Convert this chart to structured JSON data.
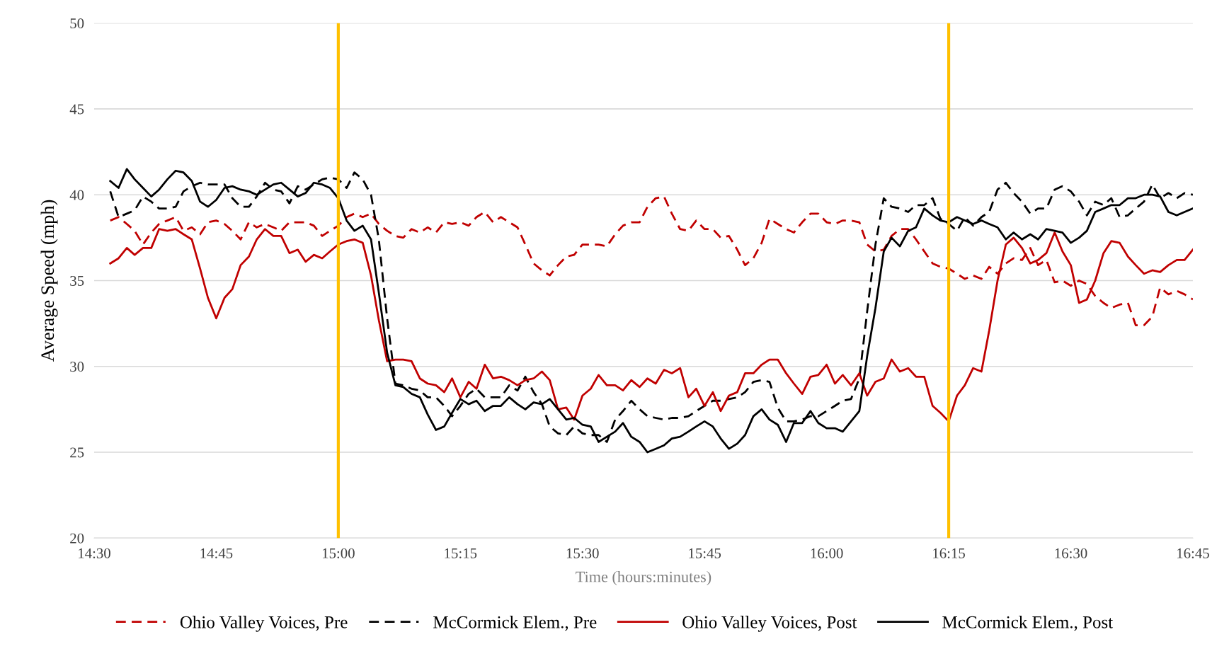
{
  "chart_data": {
    "type": "line",
    "xlabel": "Time (hours:minutes)",
    "ylabel": "Average Speed (mph)",
    "x": [
      14.533,
      14.55,
      14.567,
      14.583,
      14.6,
      14.617,
      14.633,
      14.65,
      14.667,
      14.683,
      14.7,
      14.717,
      14.733,
      14.75,
      14.767,
      14.783,
      14.8,
      14.817,
      14.833,
      14.85,
      14.867,
      14.883,
      14.9,
      14.917,
      14.933,
      14.95,
      14.967,
      14.983,
      15,
      15.017,
      15.033,
      15.05,
      15.067,
      15.083,
      15.1,
      15.117,
      15.133,
      15.15,
      15.167,
      15.183,
      15.2,
      15.217,
      15.233,
      15.25,
      15.267,
      15.283,
      15.3,
      15.317,
      15.333,
      15.35,
      15.367,
      15.383,
      15.4,
      15.417,
      15.433,
      15.45,
      15.467,
      15.483,
      15.5,
      15.517,
      15.533,
      15.55,
      15.567,
      15.583,
      15.6,
      15.617,
      15.633,
      15.65,
      15.667,
      15.683,
      15.7,
      15.717,
      15.733,
      15.75,
      15.767,
      15.783,
      15.8,
      15.817,
      15.833,
      15.85,
      15.867,
      15.883,
      15.9,
      15.917,
      15.933,
      15.95,
      15.967,
      15.983,
      16,
      16.017,
      16.033,
      16.05,
      16.067,
      16.083,
      16.1,
      16.117,
      16.133,
      16.15,
      16.167,
      16.183,
      16.2,
      16.217,
      16.233,
      16.25,
      16.267,
      16.283,
      16.3,
      16.317,
      16.333,
      16.35,
      16.367,
      16.383,
      16.4,
      16.417,
      16.433,
      16.45,
      16.467,
      16.483,
      16.5,
      16.517,
      16.533,
      16.55,
      16.567,
      16.583,
      16.6,
      16.617,
      16.633,
      16.65,
      16.667,
      16.683,
      16.7,
      16.717,
      16.733,
      16.75
    ],
    "series": [
      {
        "name": "Ohio Valley Voices, Pre",
        "color": "#c00000",
        "line_style": "dashed",
        "values": [
          38.5,
          38.7,
          38.3,
          37.9,
          37.1,
          37.8,
          38.3,
          38.5,
          38.7,
          37.9,
          38.1,
          37.7,
          38.4,
          38.5,
          38.3,
          37.9,
          37.4,
          38.4,
          38.1,
          38.3,
          38.1,
          37.9,
          38.4,
          38.4,
          38.4,
          38.2,
          37.6,
          37.9,
          38.2,
          38.7,
          38.9,
          38.7,
          38.9,
          38.3,
          37.9,
          37.6,
          37.5,
          38.0,
          37.8,
          38.1,
          37.8,
          38.4,
          38.3,
          38.4,
          38.2,
          38.7,
          39.0,
          38.4,
          38.7,
          38.4,
          38.1,
          37.1,
          36.0,
          35.6,
          35.3,
          35.9,
          36.4,
          36.5,
          37.1,
          37.1,
          37.1,
          37.0,
          37.7,
          38.2,
          38.4,
          38.4,
          39.3,
          39.8,
          39.9,
          38.9,
          38.0,
          37.9,
          38.5,
          38.0,
          38.0,
          37.5,
          37.6,
          36.8,
          35.9,
          36.3,
          37.2,
          38.6,
          38.3,
          38.0,
          37.8,
          38.4,
          38.9,
          38.9,
          38.4,
          38.3,
          38.5,
          38.5,
          38.4,
          37.1,
          36.7,
          36.8,
          37.6,
          38.0,
          38.0,
          37.4,
          36.7,
          36.0,
          35.8,
          35.7,
          35.4,
          35.1,
          35.3,
          35.1,
          35.8,
          35.4,
          36.0,
          36.3,
          36.2,
          36.9,
          35.9,
          36.2,
          34.9,
          35.0,
          34.7,
          35.0,
          34.8,
          34.1,
          33.7,
          33.4,
          33.6,
          33.7,
          32.4,
          32.4,
          32.9,
          34.6,
          34.2,
          34.4,
          34.2,
          33.9
        ]
      },
      {
        "name": "McCormick Elem., Pre",
        "color": "#000000",
        "line_style": "dashed",
        "values": [
          40.2,
          38.7,
          38.9,
          39.1,
          39.9,
          39.6,
          39.2,
          39.2,
          39.3,
          40.2,
          40.5,
          40.7,
          40.6,
          40.6,
          40.6,
          39.8,
          39.3,
          39.3,
          39.9,
          40.7,
          40.3,
          40.2,
          39.5,
          40.5,
          40.3,
          40.6,
          40.9,
          41.0,
          40.9,
          40.4,
          41.3,
          40.9,
          40.0,
          37.4,
          32.8,
          29.0,
          28.9,
          28.7,
          28.6,
          28.2,
          28.2,
          27.7,
          27.1,
          27.7,
          28.4,
          28.7,
          28.2,
          28.2,
          28.2,
          28.9,
          28.6,
          29.4,
          28.5,
          27.8,
          26.5,
          26.1,
          26.0,
          26.5,
          26.1,
          26.0,
          26.0,
          25.6,
          26.9,
          27.4,
          28.0,
          27.5,
          27.1,
          27.0,
          26.9,
          27.0,
          27.0,
          27.1,
          27.4,
          27.7,
          28.0,
          28.0,
          28.1,
          28.2,
          28.5,
          29.1,
          29.2,
          29.1,
          27.6,
          26.8,
          26.8,
          26.9,
          27.1,
          27.1,
          27.4,
          27.7,
          28.0,
          28.1,
          29.3,
          33.2,
          37.1,
          39.8,
          39.3,
          39.2,
          39.0,
          39.4,
          39.4,
          39.8,
          38.6,
          38.3,
          37.9,
          38.7,
          38.2,
          38.7,
          39.0,
          40.3,
          40.7,
          40.1,
          39.6,
          38.9,
          39.2,
          39.2,
          40.3,
          40.5,
          40.2,
          39.6,
          38.8,
          39.6,
          39.4,
          39.8,
          38.7,
          38.8,
          39.2,
          39.6,
          40.6,
          39.8,
          40.1,
          39.8,
          40.1,
          40.0
        ]
      },
      {
        "name": "Ohio Valley Voices, Post",
        "color": "#c00000",
        "line_style": "solid",
        "values": [
          36.0,
          36.3,
          36.9,
          36.5,
          36.9,
          36.9,
          38.0,
          37.9,
          38.0,
          37.7,
          37.4,
          35.7,
          34.0,
          32.8,
          34.0,
          34.5,
          35.9,
          36.4,
          37.4,
          38.0,
          37.6,
          37.6,
          36.6,
          36.8,
          36.1,
          36.5,
          36.3,
          36.7,
          37.1,
          37.3,
          37.4,
          37.2,
          35.3,
          32.7,
          30.3,
          30.4,
          30.4,
          30.3,
          29.3,
          29.0,
          28.9,
          28.5,
          29.3,
          28.2,
          29.1,
          28.7,
          30.1,
          29.3,
          29.4,
          29.2,
          28.9,
          29.2,
          29.3,
          29.7,
          29.2,
          27.5,
          27.6,
          26.9,
          28.3,
          28.7,
          29.5,
          28.9,
          28.9,
          28.6,
          29.2,
          28.8,
          29.3,
          29.0,
          29.8,
          29.6,
          29.9,
          28.2,
          28.7,
          27.7,
          28.5,
          27.4,
          28.3,
          28.5,
          29.6,
          29.6,
          30.1,
          30.4,
          30.4,
          29.6,
          29.0,
          28.4,
          29.4,
          29.5,
          30.1,
          29.0,
          29.5,
          28.9,
          29.6,
          28.3,
          29.1,
          29.3,
          30.4,
          29.7,
          29.9,
          29.4,
          29.4,
          27.7,
          27.3,
          26.8,
          28.3,
          28.9,
          29.9,
          29.7,
          32.1,
          35.0,
          37.1,
          37.5,
          36.9,
          36.0,
          36.2,
          36.6,
          37.8,
          36.7,
          35.9,
          33.7,
          33.9,
          35.0,
          36.6,
          37.3,
          37.2,
          36.4,
          35.9,
          35.4,
          35.6,
          35.5,
          35.9,
          36.2,
          36.2,
          36.8
        ]
      },
      {
        "name": "McCormick Elem., Post",
        "color": "#000000",
        "line_style": "solid",
        "values": [
          40.8,
          40.4,
          41.5,
          40.9,
          40.4,
          39.9,
          40.3,
          40.9,
          41.4,
          41.3,
          40.8,
          39.6,
          39.3,
          39.7,
          40.4,
          40.5,
          40.3,
          40.2,
          40.0,
          40.3,
          40.6,
          40.7,
          40.3,
          39.9,
          40.1,
          40.7,
          40.6,
          40.4,
          39.8,
          38.5,
          37.9,
          38.2,
          37.4,
          34.3,
          30.8,
          28.9,
          28.8,
          28.4,
          28.2,
          27.2,
          26.3,
          26.5,
          27.3,
          28.1,
          27.8,
          28.0,
          27.4,
          27.7,
          27.7,
          28.2,
          27.8,
          27.5,
          27.9,
          27.8,
          28.1,
          27.5,
          26.9,
          27.0,
          26.6,
          26.5,
          25.6,
          25.9,
          26.2,
          26.7,
          25.9,
          25.6,
          25.0,
          25.2,
          25.4,
          25.8,
          25.9,
          26.2,
          26.5,
          26.8,
          26.5,
          25.8,
          25.2,
          25.5,
          26.0,
          27.1,
          27.5,
          26.9,
          26.6,
          25.6,
          26.7,
          26.7,
          27.4,
          26.7,
          26.4,
          26.4,
          26.2,
          26.8,
          27.4,
          30.6,
          33.4,
          36.7,
          37.5,
          37.0,
          37.9,
          38.1,
          39.2,
          38.8,
          38.5,
          38.4,
          38.7,
          38.5,
          38.3,
          38.5,
          38.3,
          38.1,
          37.4,
          37.8,
          37.4,
          37.7,
          37.4,
          38.0,
          37.9,
          37.8,
          37.2,
          37.5,
          37.9,
          39.0,
          39.2,
          39.4,
          39.4,
          39.8,
          39.8,
          40.0,
          40.0,
          39.9,
          39.0,
          38.8,
          39.0,
          39.2
        ]
      }
    ],
    "xlim": [
      14.5,
      16.75
    ],
    "xticks": [
      {
        "value": 14.5,
        "label": "14:30"
      },
      {
        "value": 14.75,
        "label": "14:45"
      },
      {
        "value": 15,
        "label": "15:00"
      },
      {
        "value": 15.25,
        "label": "15:15"
      },
      {
        "value": 15.5,
        "label": "15:30"
      },
      {
        "value": 15.75,
        "label": "15:45"
      },
      {
        "value": 16,
        "label": "16:00"
      },
      {
        "value": 16.25,
        "label": "16:15"
      },
      {
        "value": 16.5,
        "label": "16:30"
      },
      {
        "value": 16.75,
        "label": "16:45"
      }
    ],
    "ylim": [
      20,
      50
    ],
    "yticks": [
      20,
      25,
      30,
      35,
      40,
      45,
      50
    ],
    "ref_lines": [
      {
        "axis": "x",
        "value": 15,
        "color": "#ffc000"
      },
      {
        "axis": "x",
        "value": 16.25,
        "color": "#ffc000"
      }
    ],
    "grid": "y",
    "legend": "bottom",
    "marker": "none"
  }
}
